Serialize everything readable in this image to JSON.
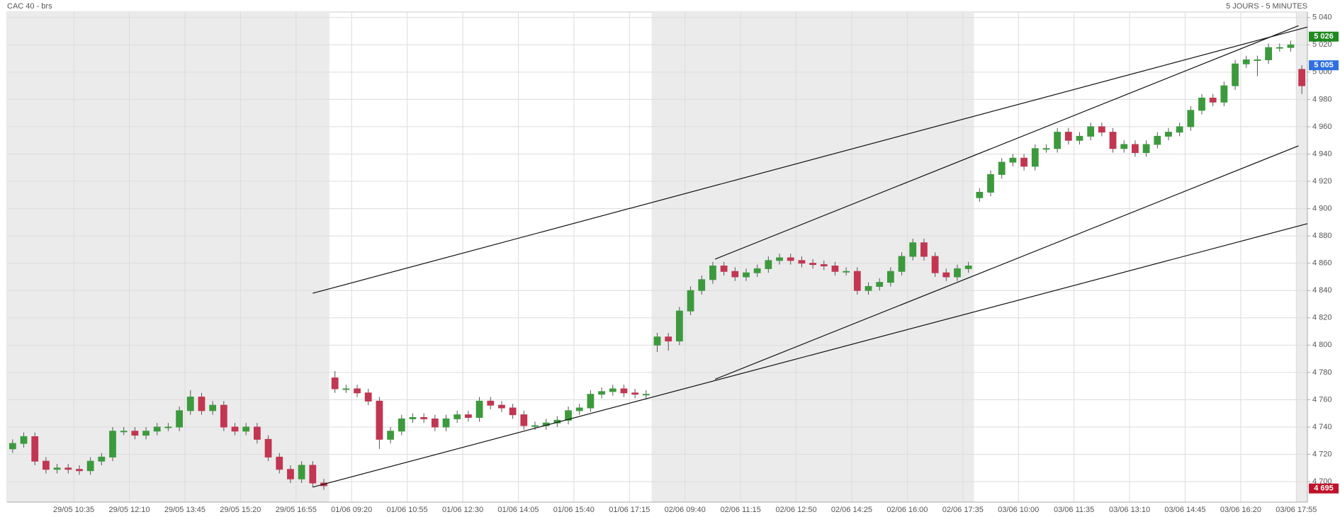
{
  "chart_data": {
    "type": "candlestick",
    "title": "CAC 40 - brs",
    "subtitle": "5 JOURS - 5 MINUTES",
    "xlim": [
      0,
      117
    ],
    "ylim": [
      4685,
      5044
    ],
    "xticks": [
      {
        "value": 6,
        "label": "29/05 10:35"
      },
      {
        "value": 11,
        "label": "29/05 12:10"
      },
      {
        "value": 16,
        "label": "29/05 13:45"
      },
      {
        "value": 21,
        "label": "29/05 15:20"
      },
      {
        "value": 26,
        "label": "29/05 16:55"
      },
      {
        "value": 31,
        "label": "01/06 09:20"
      },
      {
        "value": 36,
        "label": "01/06 10:55"
      },
      {
        "value": 41,
        "label": "01/06 12:30"
      },
      {
        "value": 46,
        "label": "01/06 14:05"
      },
      {
        "value": 51,
        "label": "01/06 15:40"
      },
      {
        "value": 56,
        "label": "01/06 17:15"
      },
      {
        "value": 61,
        "label": "02/06 09:40"
      },
      {
        "value": 66,
        "label": "02/06 11:15"
      },
      {
        "value": 71,
        "label": "02/06 12:50"
      },
      {
        "value": 76,
        "label": "02/06 14:25"
      },
      {
        "value": 81,
        "label": "02/06 16:00"
      },
      {
        "value": 86,
        "label": "02/06 17:35"
      },
      {
        "value": 91,
        "label": "03/06 10:00"
      },
      {
        "value": 96,
        "label": "03/06 11:35"
      },
      {
        "value": 101,
        "label": "03/06 13:10"
      },
      {
        "value": 106,
        "label": "03/06 14:45"
      },
      {
        "value": 111,
        "label": "03/06 16:20"
      },
      {
        "value": 116,
        "label": "03/06 17:55"
      }
    ],
    "yticks": [
      {
        "value": 4700,
        "label": "4 700"
      },
      {
        "value": 4720,
        "label": "4 720"
      },
      {
        "value": 4740,
        "label": "4 740"
      },
      {
        "value": 4760,
        "label": "4 760"
      },
      {
        "value": 4780,
        "label": "4 780"
      },
      {
        "value": 4800,
        "label": "4 800"
      },
      {
        "value": 4820,
        "label": "4 820"
      },
      {
        "value": 4840,
        "label": "4 840"
      },
      {
        "value": 4860,
        "label": "4 860"
      },
      {
        "value": 4880,
        "label": "4 880"
      },
      {
        "value": 4900,
        "label": "4 900"
      },
      {
        "value": 4920,
        "label": "4 920"
      },
      {
        "value": 4940,
        "label": "4 940"
      },
      {
        "value": 4960,
        "label": "4 960"
      },
      {
        "value": 4980,
        "label": "4 980"
      },
      {
        "value": 5000,
        "label": "5 000"
      },
      {
        "value": 5020,
        "label": "5 020"
      },
      {
        "value": 5040,
        "label": "5 040"
      }
    ],
    "grid": true,
    "shaded_x": [
      [
        0,
        29
      ],
      [
        58,
        87
      ],
      [
        116,
        117
      ]
    ],
    "up_color": "#3c9a3c",
    "down_color": "#c23652",
    "open": [
      4724,
      4728,
      4733,
      4715,
      4709,
      4710,
      4709,
      4708,
      4715,
      4718,
      4737,
      4737,
      4734,
      4737,
      4740,
      4740,
      4752,
      4762,
      4752,
      4756,
      4740,
      4737,
      4740,
      4731,
      4718,
      4709,
      4702,
      4712,
      4699,
      4776,
      4768,
      4768,
      4765,
      4759,
      4731,
      4737,
      4746,
      4747,
      4746,
      4740,
      4746,
      4749,
      4747,
      4759,
      4756,
      4754,
      4749,
      4741,
      4741,
      4743,
      4745,
      4752,
      4754,
      4764,
      4766,
      4768,
      4765,
      4764,
      4800,
      4806,
      4803,
      4825,
      4840,
      4848,
      4858,
      4854,
      4850,
      4853,
      4856,
      4862,
      4864,
      4862,
      4860,
      4859,
      4858,
      4854,
      4854,
      4840,
      4843,
      4846,
      4854,
      4865,
      4875,
      4865,
      4853,
      4850,
      4856,
      4908,
      4912,
      4925,
      4934,
      4937,
      4931,
      4944,
      4944,
      4956,
      4950,
      4953,
      4960,
      4956,
      4944,
      4947,
      4941,
      4947,
      4953,
      4956,
      4960,
      4972,
      4981,
      4978,
      4990,
      5006,
      5009,
      5009,
      5018,
      5018,
      5002
    ],
    "high": [
      4731,
      4736,
      4736,
      4718,
      4713,
      4713,
      4712,
      4718,
      4721,
      4740,
      4740,
      4740,
      4740,
      4743,
      4743,
      4755,
      4767,
      4765,
      4759,
      4759,
      4743,
      4743,
      4743,
      4734,
      4721,
      4712,
      4715,
      4715,
      4702,
      4781,
      4771,
      4771,
      4768,
      4762,
      4740,
      4749,
      4750,
      4750,
      4749,
      4749,
      4752,
      4752,
      4762,
      4762,
      4759,
      4757,
      4752,
      4744,
      4746,
      4748,
      4755,
      4757,
      4767,
      4769,
      4771,
      4771,
      4768,
      4767,
      4809,
      4809,
      4828,
      4843,
      4851,
      4861,
      4861,
      4857,
      4856,
      4859,
      4865,
      4867,
      4867,
      4865,
      4863,
      4862,
      4861,
      4857,
      4857,
      4846,
      4849,
      4857,
      4868,
      4878,
      4878,
      4868,
      4856,
      4859,
      4861,
      4915,
      4928,
      4937,
      4940,
      4940,
      4947,
      4947,
      4959,
      4959,
      4956,
      4963,
      4963,
      4959,
      4950,
      4950,
      4950,
      4956,
      4959,
      4963,
      4975,
      4984,
      4984,
      4993,
      5009,
      5012,
      5012,
      5021,
      5021,
      5023,
      5005
    ],
    "low": [
      4721,
      4725,
      4712,
      4706,
      4706,
      4706,
      4705,
      4705,
      4712,
      4715,
      4734,
      4731,
      4731,
      4734,
      4737,
      4737,
      4749,
      4749,
      4749,
      4737,
      4734,
      4734,
      4728,
      4715,
      4706,
      4699,
      4699,
      4696,
      4694,
      4765,
      4765,
      4762,
      4756,
      4724,
      4728,
      4734,
      4743,
      4743,
      4737,
      4737,
      4743,
      4744,
      4744,
      4753,
      4751,
      4746,
      4738,
      4738,
      4738,
      4740,
      4742,
      4749,
      4751,
      4761,
      4763,
      4762,
      4761,
      4761,
      4795,
      4796,
      4800,
      4822,
      4837,
      4845,
      4851,
      4847,
      4847,
      4850,
      4853,
      4859,
      4859,
      4857,
      4856,
      4855,
      4851,
      4851,
      4837,
      4837,
      4840,
      4843,
      4851,
      4862,
      4862,
      4850,
      4847,
      4847,
      4853,
      4905,
      4909,
      4922,
      4931,
      4928,
      4928,
      4941,
      4941,
      4947,
      4947,
      4950,
      4953,
      4941,
      4941,
      4938,
      4938,
      4944,
      4950,
      4953,
      4957,
      4969,
      4975,
      4975,
      4987,
      5003,
      4997,
      5006,
      5015,
      5015,
      4984
    ],
    "close": [
      4728,
      4733,
      4715,
      4709,
      4710,
      4709,
      4708,
      4715,
      4718,
      4737,
      4737,
      4734,
      4737,
      4740,
      4740,
      4752,
      4762,
      4752,
      4756,
      4740,
      4737,
      4740,
      4731,
      4718,
      4709,
      4702,
      4712,
      4699,
      4697,
      4768,
      4768,
      4765,
      4759,
      4731,
      4737,
      4746,
      4747,
      4746,
      4740,
      4746,
      4749,
      4747,
      4759,
      4756,
      4754,
      4749,
      4741,
      4741,
      4743,
      4745,
      4752,
      4754,
      4764,
      4766,
      4768,
      4765,
      4764,
      4764,
      4806,
      4803,
      4825,
      4840,
      4848,
      4858,
      4854,
      4850,
      4853,
      4856,
      4862,
      4864,
      4862,
      4860,
      4859,
      4858,
      4854,
      4854,
      4840,
      4843,
      4846,
      4854,
      4865,
      4875,
      4865,
      4853,
      4850,
      4856,
      4858,
      4912,
      4925,
      4934,
      4937,
      4931,
      4944,
      4944,
      4956,
      4950,
      4953,
      4960,
      4956,
      4944,
      4947,
      4941,
      4947,
      4953,
      4956,
      4960,
      4972,
      4981,
      4978,
      4990,
      5006,
      5009,
      5009,
      5018,
      5018,
      5020,
      4990
    ],
    "trend_lines": [
      {
        "x": [
          27.5,
          117
        ],
        "y": [
          4838,
          5033
        ]
      },
      {
        "x": [
          63.7,
          116.2
        ],
        "y": [
          4863,
          5034
        ]
      },
      {
        "x": [
          63.7,
          116.2
        ],
        "y": [
          4775,
          4946
        ]
      },
      {
        "x": [
          27.5,
          117
        ],
        "y": [
          4696,
          4889
        ]
      }
    ],
    "line_color": "#111111",
    "price_markers": [
      {
        "value": 5026,
        "label": "5 026",
        "color": "#1f8a1f"
      },
      {
        "value": 5005,
        "label": "5 005",
        "color": "#2f6fe0"
      },
      {
        "value": 4695,
        "label": "4 695",
        "color": "#c0122c"
      }
    ]
  }
}
